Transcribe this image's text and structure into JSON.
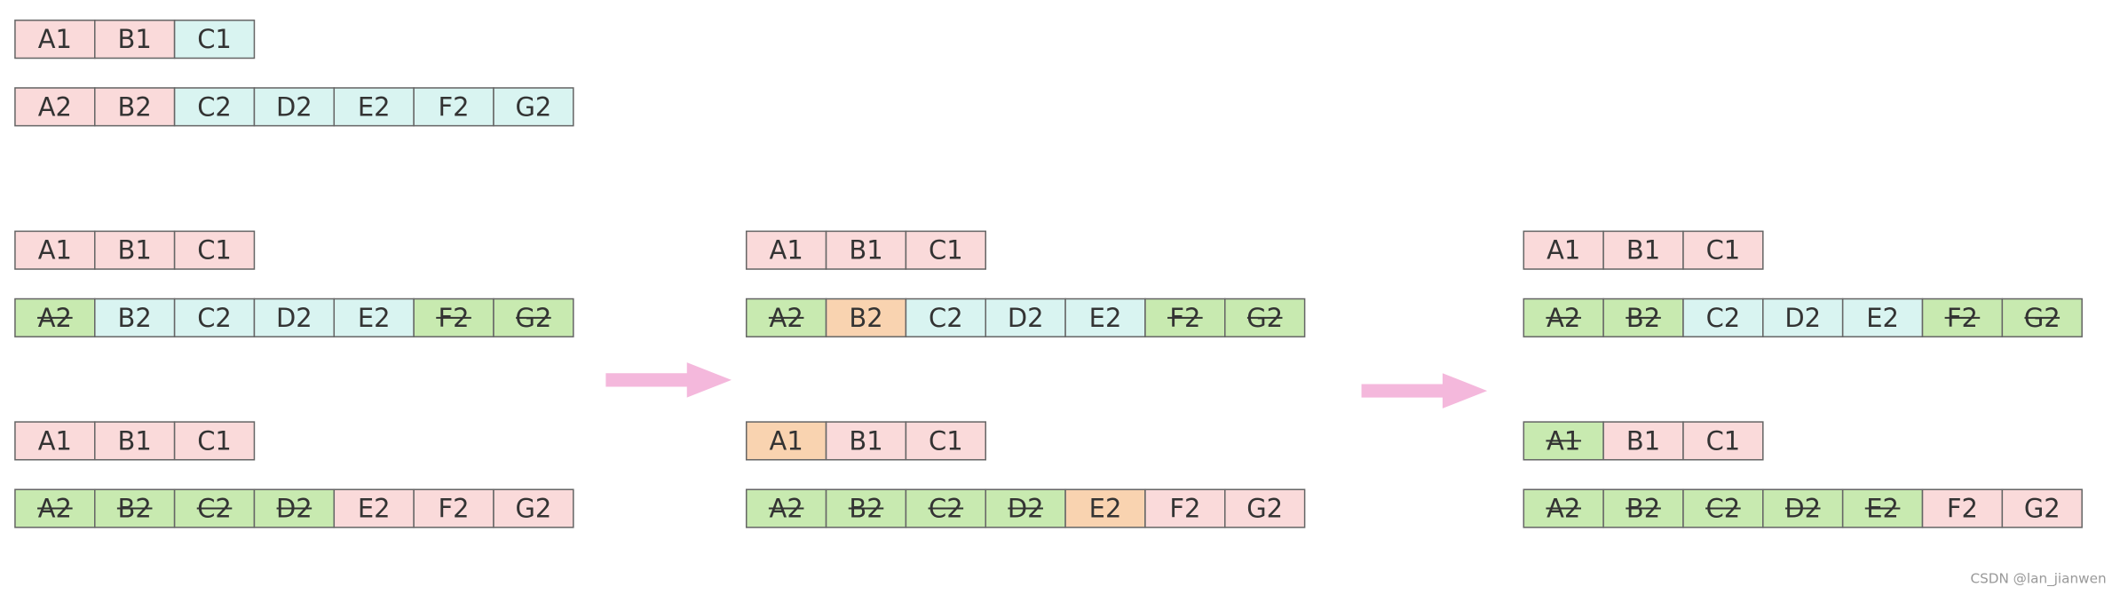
{
  "rows": [
    {
      "cells": [
        {
          "text": "A1",
          "color": "#fadada",
          "struck": false
        },
        {
          "text": "B1",
          "color": "#fadada",
          "struck": false
        },
        {
          "text": "C1",
          "color": "#d9f4f1",
          "struck": false
        }
      ]
    },
    {
      "cells": [
        {
          "text": "A2",
          "color": "#fadada",
          "struck": false
        },
        {
          "text": "B2",
          "color": "#fadada",
          "struck": false
        },
        {
          "text": "C2",
          "color": "#d9f4f1",
          "struck": false
        },
        {
          "text": "D2",
          "color": "#d9f4f1",
          "struck": false
        },
        {
          "text": "E2",
          "color": "#d9f4f1",
          "struck": false
        },
        {
          "text": "F2",
          "color": "#d9f4f1",
          "struck": false
        },
        {
          "text": "G2",
          "color": "#d9f4f1",
          "struck": false
        }
      ]
    },
    {
      "cells": [
        {
          "text": "A1",
          "color": "#fadada",
          "struck": false
        },
        {
          "text": "B1",
          "color": "#fadada",
          "struck": false
        },
        {
          "text": "C1",
          "color": "#fadada",
          "struck": false
        }
      ]
    },
    {
      "cells": [
        {
          "text": "A2",
          "color": "#c8eab0",
          "struck": true
        },
        {
          "text": "B2",
          "color": "#d9f4f1",
          "struck": false
        },
        {
          "text": "C2",
          "color": "#d9f4f1",
          "struck": false
        },
        {
          "text": "D2",
          "color": "#d9f4f1",
          "struck": false
        },
        {
          "text": "E2",
          "color": "#d9f4f1",
          "struck": false
        },
        {
          "text": "F2",
          "color": "#c8eab0",
          "struck": true
        },
        {
          "text": "G2",
          "color": "#c8eab0",
          "struck": true
        }
      ]
    },
    {
      "cells": [
        {
          "text": "A1",
          "color": "#fadada",
          "struck": false
        },
        {
          "text": "B1",
          "color": "#fadada",
          "struck": false
        },
        {
          "text": "C1",
          "color": "#fadada",
          "struck": false
        }
      ]
    },
    {
      "cells": [
        {
          "text": "A2",
          "color": "#c8eab0",
          "struck": true
        },
        {
          "text": "B2",
          "color": "#c8eab0",
          "struck": true
        },
        {
          "text": "C2",
          "color": "#c8eab0",
          "struck": true
        },
        {
          "text": "D2",
          "color": "#c8eab0",
          "struck": true
        },
        {
          "text": "E2",
          "color": "#fadada",
          "struck": false
        },
        {
          "text": "F2",
          "color": "#fadada",
          "struck": false
        },
        {
          "text": "G2",
          "color": "#fadada",
          "struck": false
        }
      ]
    },
    {
      "cells": [
        {
          "text": "A1",
          "color": "#fadada",
          "struck": false
        },
        {
          "text": "B1",
          "color": "#fadada",
          "struck": false
        },
        {
          "text": "C1",
          "color": "#fadada",
          "struck": false
        }
      ]
    },
    {
      "cells": [
        {
          "text": "A2",
          "color": "#c8eab0",
          "struck": true
        },
        {
          "text": "B2",
          "color": "#f9d3b0",
          "struck": false
        },
        {
          "text": "C2",
          "color": "#d9f4f1",
          "struck": false
        },
        {
          "text": "D2",
          "color": "#d9f4f1",
          "struck": false
        },
        {
          "text": "E2",
          "color": "#d9f4f1",
          "struck": false
        },
        {
          "text": "F2",
          "color": "#c8eab0",
          "struck": true
        },
        {
          "text": "G2",
          "color": "#c8eab0",
          "struck": true
        }
      ]
    },
    {
      "cells": [
        {
          "text": "A1",
          "color": "#f9d3b0",
          "struck": false
        },
        {
          "text": "B1",
          "color": "#fadada",
          "struck": false
        },
        {
          "text": "C1",
          "color": "#fadada",
          "struck": false
        }
      ]
    },
    {
      "cells": [
        {
          "text": "A2",
          "color": "#c8eab0",
          "struck": true
        },
        {
          "text": "B2",
          "color": "#c8eab0",
          "struck": true
        },
        {
          "text": "C2",
          "color": "#c8eab0",
          "struck": true
        },
        {
          "text": "D2",
          "color": "#c8eab0",
          "struck": true
        },
        {
          "text": "E2",
          "color": "#f9d3b0",
          "struck": false
        },
        {
          "text": "F2",
          "color": "#fadada",
          "struck": false
        },
        {
          "text": "G2",
          "color": "#fadada",
          "struck": false
        }
      ]
    },
    {
      "cells": [
        {
          "text": "A1",
          "color": "#fadada",
          "struck": false
        },
        {
          "text": "B1",
          "color": "#fadada",
          "struck": false
        },
        {
          "text": "C1",
          "color": "#fadada",
          "struck": false
        }
      ]
    },
    {
      "cells": [
        {
          "text": "A2",
          "color": "#c8eab0",
          "struck": true
        },
        {
          "text": "B2",
          "color": "#c8eab0",
          "struck": true
        },
        {
          "text": "C2",
          "color": "#d9f4f1",
          "struck": false
        },
        {
          "text": "D2",
          "color": "#d9f4f1",
          "struck": false
        },
        {
          "text": "E2",
          "color": "#d9f4f1",
          "struck": false
        },
        {
          "text": "F2",
          "color": "#c8eab0",
          "struck": true
        },
        {
          "text": "G2",
          "color": "#c8eab0",
          "struck": true
        }
      ]
    },
    {
      "cells": [
        {
          "text": "A1",
          "color": "#c8eab0",
          "struck": true
        },
        {
          "text": "B1",
          "color": "#fadada",
          "struck": false
        },
        {
          "text": "C1",
          "color": "#fadada",
          "struck": false
        }
      ]
    },
    {
      "cells": [
        {
          "text": "A2",
          "color": "#c8eab0",
          "struck": true
        },
        {
          "text": "B2",
          "color": "#c8eab0",
          "struck": true
        },
        {
          "text": "C2",
          "color": "#c8eab0",
          "struck": true
        },
        {
          "text": "D2",
          "color": "#c8eab0",
          "struck": true
        },
        {
          "text": "E2",
          "color": "#c8eab0",
          "struck": true
        },
        {
          "text": "F2",
          "color": "#fadada",
          "struck": false
        },
        {
          "text": "G2",
          "color": "#fadada",
          "struck": false
        }
      ]
    }
  ],
  "watermark": "CSDN @lan_jianwen"
}
